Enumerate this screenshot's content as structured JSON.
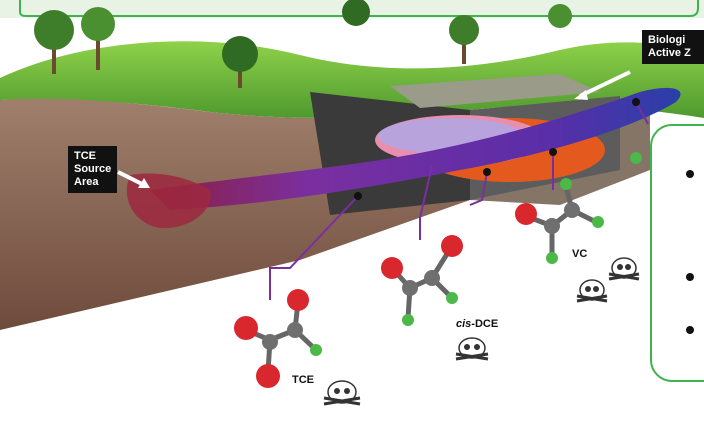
{
  "labels": {
    "source_area": "TCE\nSource\nArea",
    "bio_zone": "Biologi\nActive Z",
    "tce": "TCE",
    "cis_dce_prefix": "cis",
    "cis_dce_suffix": "-DCE",
    "vc": "VC"
  },
  "callout": {
    "bullets": [
      "",
      "",
      ""
    ]
  },
  "colors": {
    "frame_green": "#3fb34f",
    "plume_purple": "#7a2fa0",
    "plume_blue": "#2a3fa8",
    "reactive_orange": "#e45a1e",
    "atom_red": "#d9272e",
    "atom_green": "#4bb848",
    "atom_gray": "#6f6f6f"
  }
}
